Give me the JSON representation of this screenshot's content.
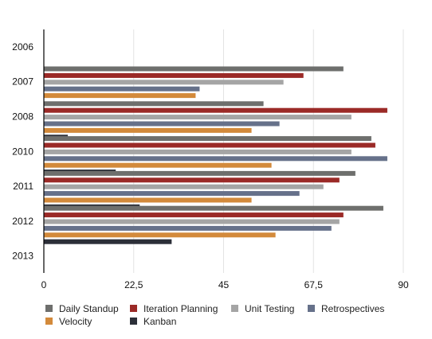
{
  "chart_data": {
    "type": "bar",
    "orientation": "horizontal",
    "categories": [
      "2006",
      "2007",
      "2008",
      "2010",
      "2011",
      "2012",
      "2013"
    ],
    "xlim": [
      0,
      90
    ],
    "xticks": [
      "0",
      "22,5",
      "45",
      "67,5",
      "90"
    ],
    "grid": true,
    "legend_position": "bottom",
    "title": "",
    "xlabel": "",
    "ylabel": "",
    "series": [
      {
        "name": "Daily Standup",
        "color": "#6e6f6d",
        "values": [
          null,
          75,
          55,
          82,
          78,
          85,
          null
        ]
      },
      {
        "name": "Iteration Planning",
        "color": "#9b2a27",
        "values": [
          null,
          65,
          86,
          83,
          74,
          75,
          null
        ]
      },
      {
        "name": "Unit Testing",
        "color": "#a5a5a5",
        "values": [
          null,
          60,
          77,
          77,
          70,
          74,
          null
        ]
      },
      {
        "name": "Retrospectives",
        "color": "#66718a",
        "values": [
          null,
          39,
          59,
          86,
          64,
          72,
          null
        ]
      },
      {
        "name": "Velocity",
        "color": "#d38a3b",
        "values": [
          null,
          38,
          52,
          57,
          52,
          58,
          null
        ]
      },
      {
        "name": "Kanban",
        "color": "#2c2f38",
        "values": [
          null,
          null,
          6,
          18,
          24,
          32,
          null
        ]
      }
    ]
  }
}
